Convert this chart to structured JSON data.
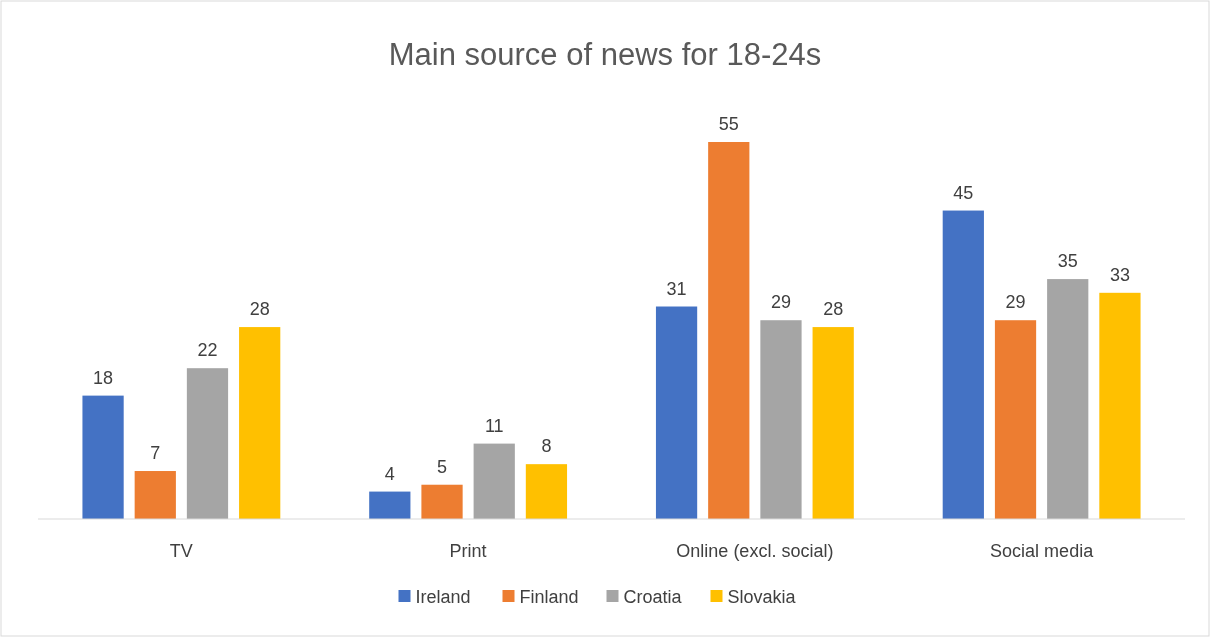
{
  "chart_data": {
    "type": "bar",
    "title": "Main source of news for 18-24s",
    "categories": [
      "TV",
      "Print",
      "Online (excl. social)",
      "Social media"
    ],
    "series": [
      {
        "name": "Ireland",
        "color": "#4472c4",
        "values": [
          18,
          4,
          31,
          45
        ]
      },
      {
        "name": "Finland",
        "color": "#ed7d31",
        "values": [
          7,
          5,
          55,
          29
        ]
      },
      {
        "name": "Croatia",
        "color": "#a5a5a5",
        "values": [
          22,
          11,
          29,
          35
        ]
      },
      {
        "name": "Slovakia",
        "color": "#ffc000",
        "values": [
          28,
          8,
          28,
          33
        ]
      }
    ],
    "data_labels": true,
    "legend": "bottom"
  }
}
